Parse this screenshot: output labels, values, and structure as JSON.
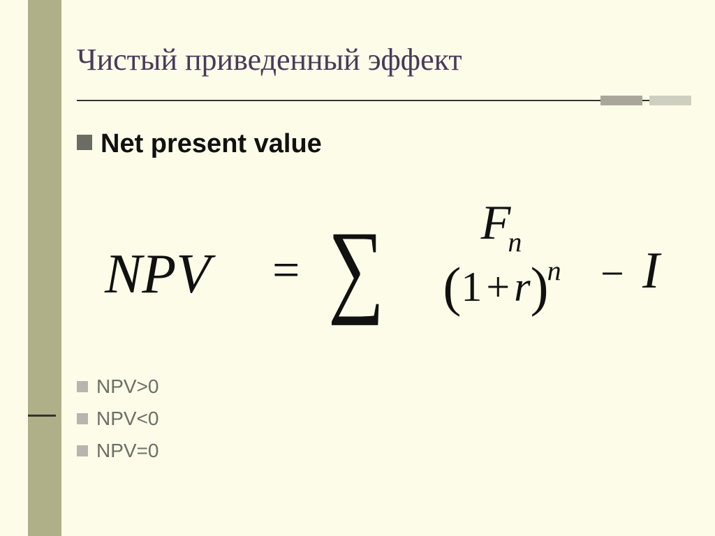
{
  "slide": {
    "background_color": "#fcfce9",
    "title": "Чистый приведенный эффект",
    "title_color": "#4a3a5a",
    "title_fontsize": 44,
    "left_stripe_color": "#b0b088",
    "divider_accent_a": "#aaa79a",
    "divider_accent_b": "#cfcfc0"
  },
  "bullets": {
    "main": {
      "label": "Net present value",
      "bold": true,
      "fontsize": 38
    },
    "sub": [
      {
        "label": "NPV>0"
      },
      {
        "label": "NPV<0"
      },
      {
        "label": "NPV=0"
      }
    ],
    "sub_fontsize": 28,
    "bullet_color_light": "#b6b6ae",
    "bullet_color_dark": "#6c6c64"
  },
  "formula": {
    "lhs": "NPV",
    "operator_eq": "=",
    "sigma": "∑",
    "numerator_var": "F",
    "numerator_sub": "n",
    "denominator_open": "(",
    "denominator_one": "1",
    "denominator_plus": "+",
    "denominator_var": "r",
    "denominator_close": ")",
    "denominator_sup": "n",
    "minus": "−",
    "tail_var": "I",
    "font": "Times New Roman",
    "color": "#111111"
  }
}
